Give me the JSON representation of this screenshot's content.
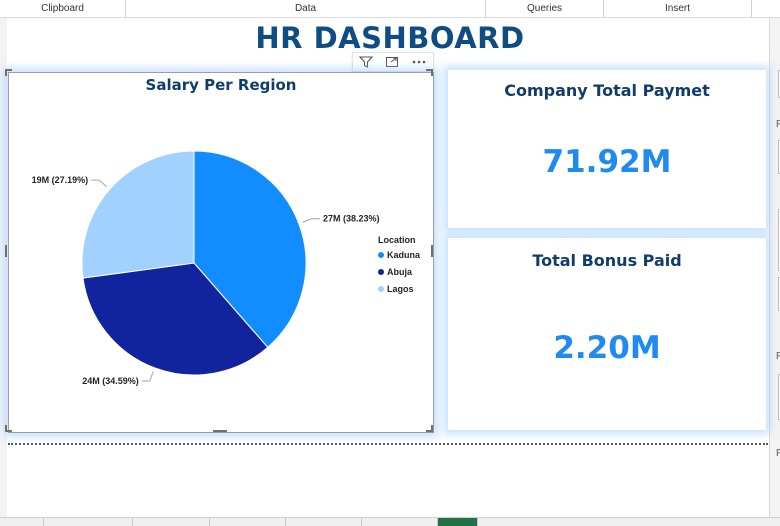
{
  "ribbon": {
    "groups": [
      "Clipboard",
      "Data",
      "Queries",
      "Insert"
    ]
  },
  "dashboard": {
    "title": "HR DASHBOARD"
  },
  "visual_header": {
    "icons": [
      "filter-icon",
      "focus-mode-icon",
      "more-options-icon"
    ]
  },
  "chart_data": {
    "type": "pie",
    "title": "Salary Per Region",
    "legend_title": "Location",
    "legend_position": "right",
    "categories": [
      "Kaduna",
      "Abuja",
      "Lagos"
    ],
    "values": [
      27,
      24,
      19
    ],
    "percentages": [
      38.23,
      34.59,
      27.19
    ],
    "labels": [
      "27M (38.23%)",
      "24M (34.59%)",
      "19M (27.19%)"
    ],
    "colors": [
      "#118dff",
      "#12239e",
      "#a0d1ff"
    ]
  },
  "kpis": {
    "total_payment": {
      "title": "Company Total Paymet",
      "value": "71.92M"
    },
    "bonus": {
      "title": "Total Bonus Paid",
      "value": "2.20M"
    }
  },
  "right_pane": {
    "chars": [
      "F",
      "F",
      "F"
    ]
  },
  "colors": {
    "title": "#104c84",
    "kpi_value": "#1f8bf2",
    "bottom_tab_active": "#217346"
  }
}
